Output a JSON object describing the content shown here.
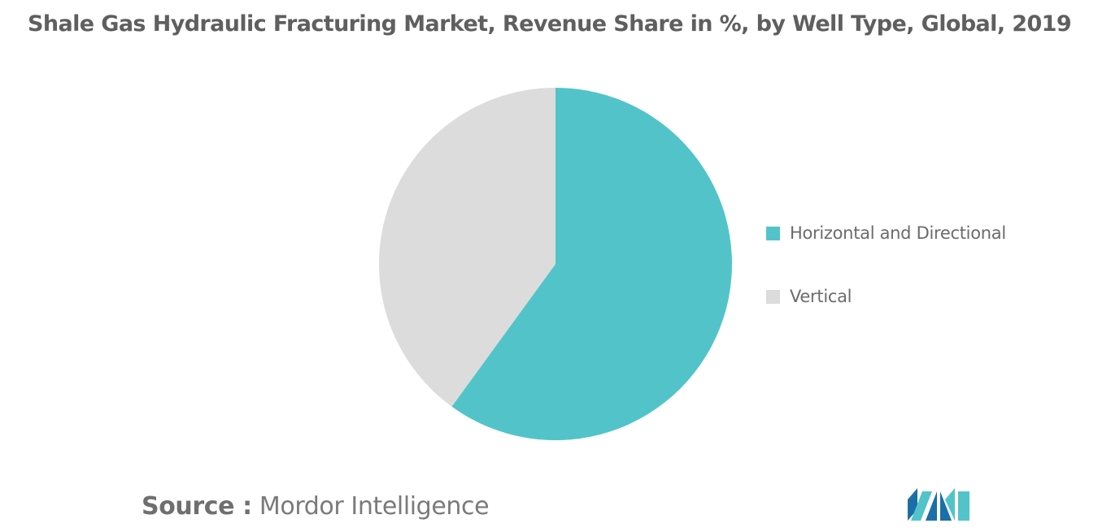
{
  "chart_data": {
    "type": "pie",
    "title": "Shale Gas Hydraulic Fracturing Market, Revenue Share in %, by Well Type, Global, 2019",
    "slices": [
      {
        "label": "Horizontal and Directional",
        "value": 60,
        "color": "#52c4c9"
      },
      {
        "label": "Vertical",
        "value": 40,
        "color": "#dcdcdc"
      }
    ],
    "legend_position": "right"
  },
  "footer": {
    "source_label": "Source :",
    "source_value": " Mordor Intelligence"
  },
  "logo": {
    "icon": "mordor-intelligence-logo-icon",
    "colors": [
      "#1b6fa8",
      "#52c4c9"
    ]
  }
}
